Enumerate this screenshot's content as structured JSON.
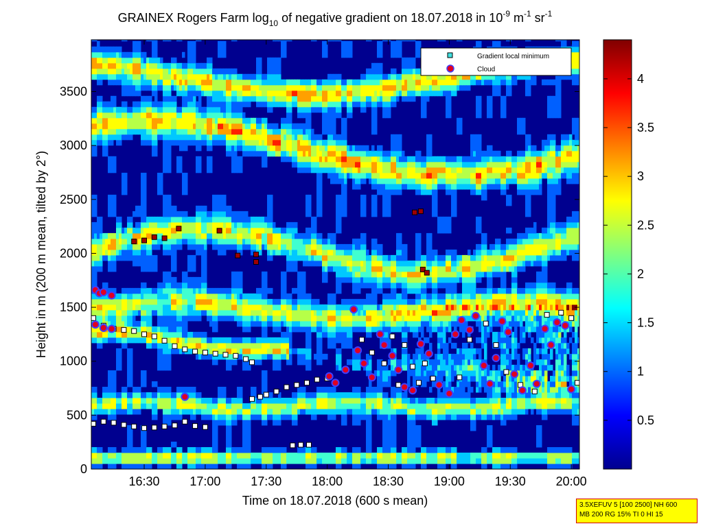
{
  "chart_data": {
    "type": "heatmap",
    "title": {
      "prefix": "GRAINEX Rogers Farm log",
      "log_base": "10",
      "middle": " of negative gradient on 18.07.2018 in 10",
      "exp1": "-9",
      "mid2": " m",
      "exp2": "-1",
      "mid3": " sr",
      "exp3": "-1"
    },
    "xlabel": "Time on 18.07.2018 (600 s mean)",
    "ylabel": "Height in m (200 m mean, tilted by 2°)",
    "x_range_minutes": [
      964,
      1204
    ],
    "ylim": [
      0,
      3980
    ],
    "x_ticks": [
      {
        "label": "16:30",
        "minutes": 990
      },
      {
        "label": "17:00",
        "minutes": 1020
      },
      {
        "label": "17:30",
        "minutes": 1050
      },
      {
        "label": "18:00",
        "minutes": 1080
      },
      {
        "label": "18:30",
        "minutes": 1110
      },
      {
        "label": "19:00",
        "minutes": 1140
      },
      {
        "label": "19:30",
        "minutes": 1170
      },
      {
        "label": "20:00",
        "minutes": 1200
      }
    ],
    "y_ticks": [
      0,
      500,
      1000,
      1500,
      2000,
      2500,
      3000,
      3500
    ],
    "colorbar": {
      "range": [
        0,
        4.4
      ],
      "ticks": [
        0.5,
        1,
        1.5,
        2,
        2.5,
        3,
        3.5,
        4
      ]
    },
    "legend": {
      "placement": "top-right",
      "entries": [
        "Gradient local minimum",
        "Cloud"
      ]
    },
    "series": [
      {
        "name": "Gradient local minimum",
        "points": [
          [
            965,
            420
          ],
          [
            970,
            440
          ],
          [
            975,
            430
          ],
          [
            980,
            410
          ],
          [
            985,
            395
          ],
          [
            990,
            380
          ],
          [
            995,
            385
          ],
          [
            1000,
            395
          ],
          [
            1005,
            405
          ],
          [
            1010,
            440
          ],
          [
            1015,
            400
          ],
          [
            1020,
            390
          ],
          [
            965,
            1400
          ],
          [
            970,
            1330
          ],
          [
            975,
            1300
          ],
          [
            980,
            1290
          ],
          [
            985,
            1280
          ],
          [
            990,
            1250
          ],
          [
            995,
            1230
          ],
          [
            1000,
            1190
          ],
          [
            1005,
            1140
          ],
          [
            1010,
            1110
          ],
          [
            1015,
            1090
          ],
          [
            1020,
            1080
          ],
          [
            1025,
            1070
          ],
          [
            1030,
            1060
          ],
          [
            1035,
            1050
          ],
          [
            1040,
            1020
          ],
          [
            1043,
            990
          ],
          [
            1043,
            650
          ],
          [
            1047,
            670
          ],
          [
            1050,
            690
          ],
          [
            1055,
            720
          ],
          [
            1060,
            760
          ],
          [
            1065,
            780
          ],
          [
            1070,
            800
          ],
          [
            1075,
            830
          ],
          [
            1080,
            840
          ],
          [
            1063,
            220
          ],
          [
            1067,
            225
          ],
          [
            1071,
            225
          ],
          [
            985,
            2110
          ],
          [
            990,
            2120
          ],
          [
            995,
            2150
          ],
          [
            1000,
            2140
          ],
          [
            1007,
            2230
          ],
          [
            1027,
            2210
          ],
          [
            1036,
            1980
          ],
          [
            1045,
            1920
          ],
          [
            1045,
            1990
          ],
          [
            1097,
            1200
          ],
          [
            1102,
            1080
          ],
          [
            1108,
            980
          ],
          [
            1112,
            1230
          ],
          [
            1118,
            1150
          ],
          [
            1122,
            950
          ],
          [
            1128,
            980
          ],
          [
            1132,
            840
          ],
          [
            1115,
            780
          ],
          [
            1125,
            800
          ],
          [
            1145,
            850
          ],
          [
            1150,
            1200
          ],
          [
            1158,
            1350
          ],
          [
            1163,
            1150
          ],
          [
            1168,
            900
          ],
          [
            1175,
            780
          ],
          [
            1182,
            720
          ],
          [
            1188,
            1430
          ],
          [
            1195,
            1450
          ],
          [
            1200,
            1400
          ],
          [
            1203,
            800
          ],
          [
            1123,
            2380
          ],
          [
            1126,
            2390
          ],
          [
            1127,
            1850
          ],
          [
            1129,
            1820
          ]
        ]
      },
      {
        "name": "Cloud",
        "points": [
          [
            966,
            1660
          ],
          [
            968,
            1630
          ],
          [
            970,
            1640
          ],
          [
            974,
            1610
          ],
          [
            966,
            1340
          ],
          [
            970,
            1310
          ],
          [
            974,
            1300
          ],
          [
            1010,
            670
          ],
          [
            1081,
            860
          ],
          [
            1084,
            800
          ],
          [
            1089,
            920
          ],
          [
            1093,
            1480
          ],
          [
            1095,
            1100
          ],
          [
            1098,
            980
          ],
          [
            1102,
            850
          ],
          [
            1106,
            1250
          ],
          [
            1108,
            1150
          ],
          [
            1112,
            1050
          ],
          [
            1115,
            920
          ],
          [
            1118,
            760
          ],
          [
            1122,
            730
          ],
          [
            1126,
            1160
          ],
          [
            1130,
            1070
          ],
          [
            1135,
            780
          ],
          [
            1140,
            700
          ],
          [
            1143,
            1250
          ],
          [
            1146,
            1380
          ],
          [
            1150,
            1290
          ],
          [
            1153,
            1420
          ],
          [
            1157,
            960
          ],
          [
            1160,
            790
          ],
          [
            1163,
            1030
          ],
          [
            1166,
            1370
          ],
          [
            1169,
            1270
          ],
          [
            1172,
            880
          ],
          [
            1176,
            730
          ],
          [
            1180,
            960
          ],
          [
            1183,
            790
          ],
          [
            1187,
            1300
          ],
          [
            1190,
            1150
          ],
          [
            1193,
            1360
          ],
          [
            1197,
            1330
          ],
          [
            1200,
            740
          ]
        ]
      }
    ],
    "bands": [
      {
        "label": "1.5–2.0",
        "color": "#47e0ff",
        "ranges": [
          [
            964,
            1204,
            1380,
            1550
          ],
          [
            964,
            1204,
            850,
            1000
          ],
          [
            964,
            1204,
            500,
            650
          ]
        ]
      },
      {
        "label": "2.0–2.5",
        "color": "#b6ff48",
        "ranges": [
          [
            964,
            1204,
            1900,
            2100
          ],
          [
            964,
            1204,
            2800,
            3000
          ]
        ]
      }
    ],
    "info_box": [
      "3.5XEFUV 5 [100 2500] NH 600",
      "MB 200 RG 15% TI 0 HI 15"
    ],
    "colors": {
      "low": "#00008f",
      "mid": "#00d0ff",
      "high": "#ffff00",
      "max": "#800000",
      "gradient_marker_fill": "#40e0e0",
      "cloud_marker": "#e00020"
    }
  }
}
